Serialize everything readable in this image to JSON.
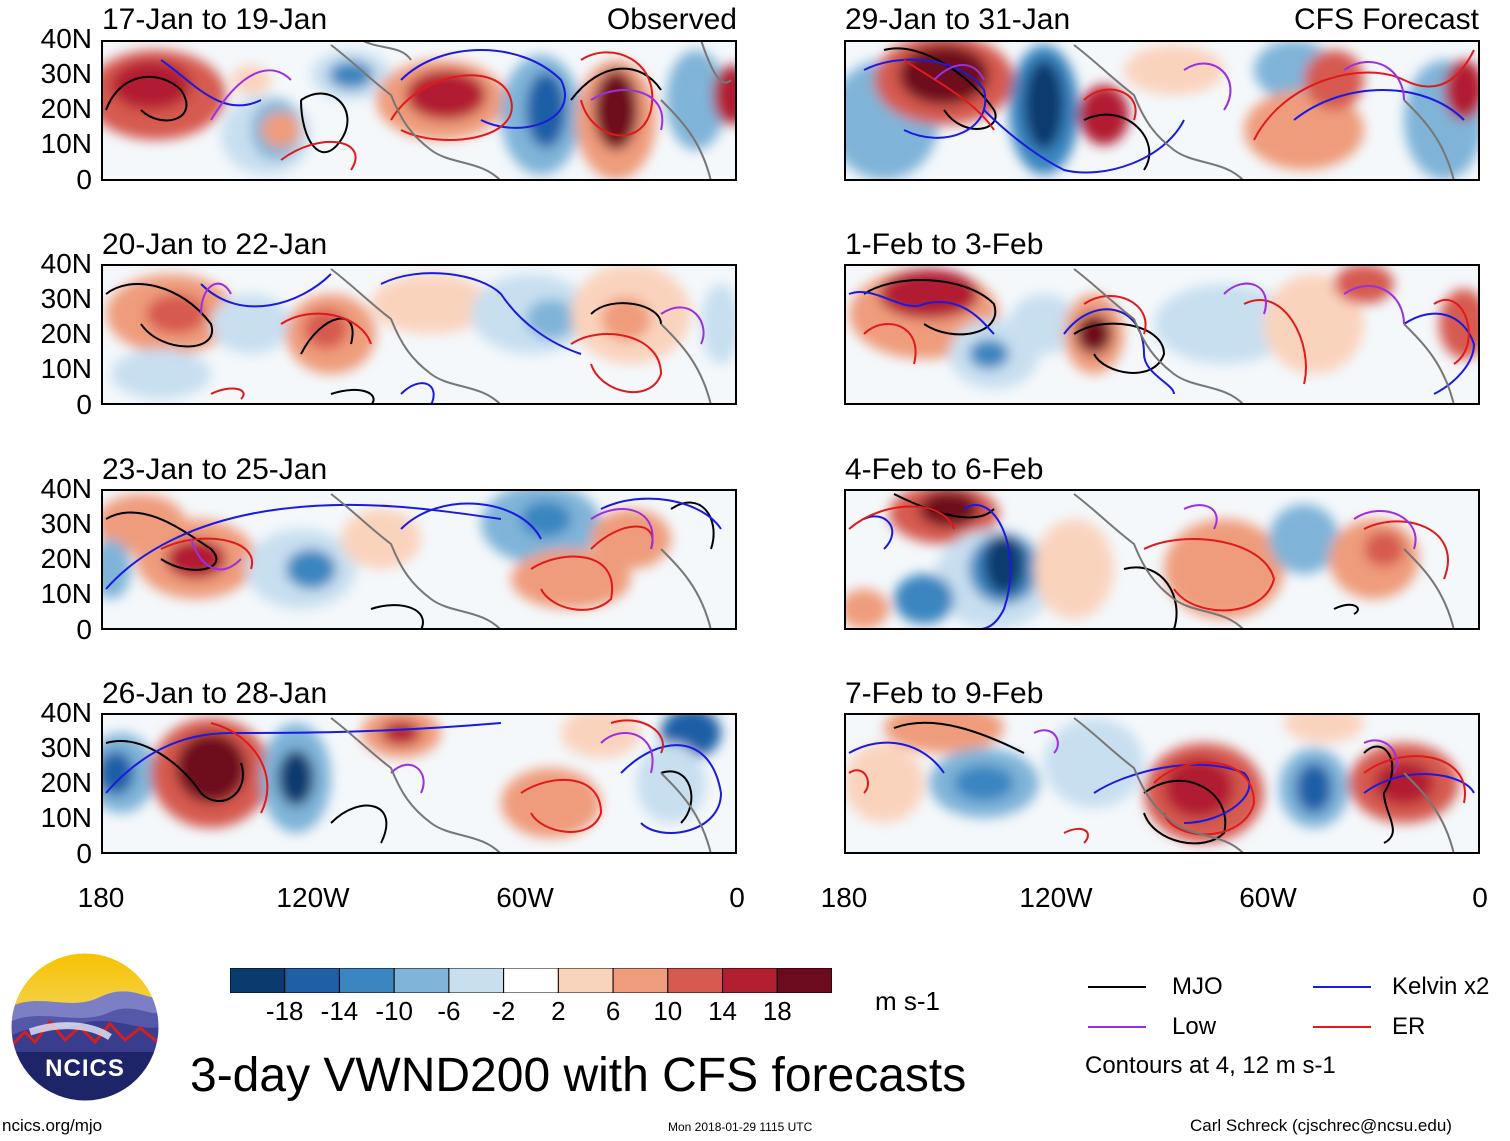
{
  "panels_left": [
    {
      "title": "17-Jan to 19-Jan",
      "tag": "Observed"
    },
    {
      "title": "20-Jan to 22-Jan",
      "tag": ""
    },
    {
      "title": "23-Jan to 25-Jan",
      "tag": ""
    },
    {
      "title": "26-Jan to 28-Jan",
      "tag": ""
    }
  ],
  "panels_right": [
    {
      "title": "29-Jan to 31-Jan",
      "tag": "CFS Forecast"
    },
    {
      "title": "1-Feb to 3-Feb",
      "tag": ""
    },
    {
      "title": "4-Feb to 6-Feb",
      "tag": ""
    },
    {
      "title": "7-Feb to 9-Feb",
      "tag": ""
    }
  ],
  "y_ticks": [
    "40N",
    "30N",
    "20N",
    "10N",
    "0"
  ],
  "x_ticks": [
    "180",
    "120W",
    "60W",
    "0"
  ],
  "colorbar": {
    "labels": [
      "-18",
      "-14",
      "-10",
      "-6",
      "-2",
      "2",
      "6",
      "10",
      "14",
      "18"
    ],
    "colors": [
      "#0b3b6e",
      "#1f5fa6",
      "#3b85c0",
      "#7fb4d8",
      "#c8dff0",
      "#ffffff",
      "#fad3bd",
      "#ef9c7c",
      "#d65a50",
      "#b21f30",
      "#6e0a1e"
    ],
    "units": "m s-1"
  },
  "legend": {
    "items": [
      {
        "label": "MJO",
        "color": "#000000"
      },
      {
        "label": "Kelvin x2",
        "color": "#1a1ae0"
      },
      {
        "label": "Low",
        "color": "#9a30e0"
      },
      {
        "label": "ER",
        "color": "#e01a1a"
      }
    ],
    "note": "Contours at 4, 12 m s-1"
  },
  "logo": {
    "text": "NCICS"
  },
  "title": "3-day VWND200 with CFS forecasts",
  "footer": {
    "url": "ncics.org/mjo",
    "timestamp": "Mon 2018-01-29 1115 UTC",
    "author": "Carl Schreck (cjschrec@ncsu.edu)"
  }
}
